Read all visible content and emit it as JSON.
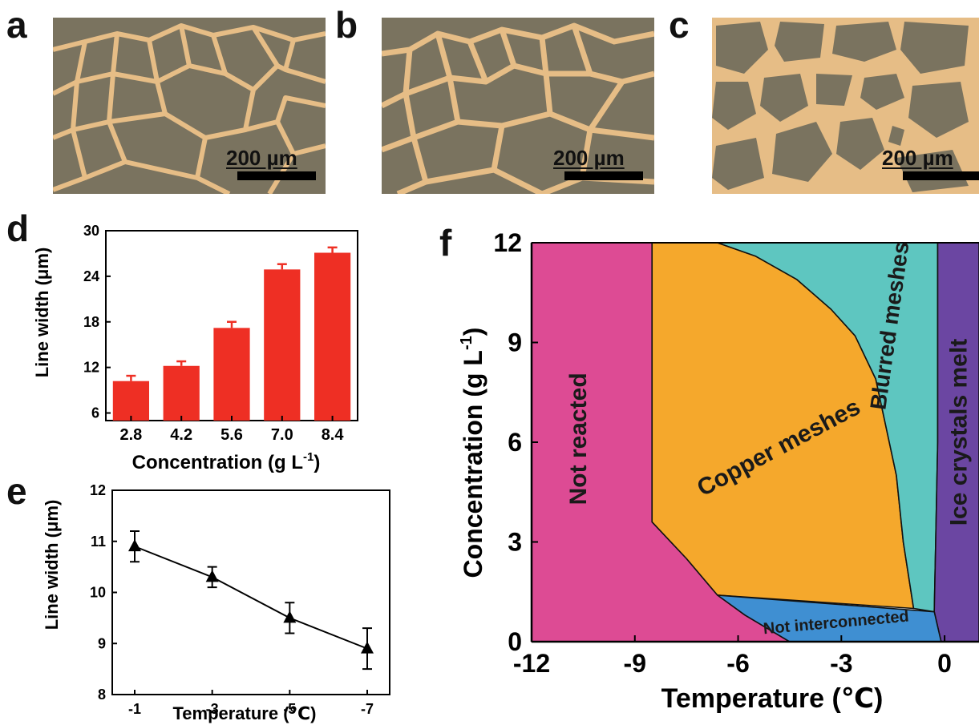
{
  "panels": {
    "a": {
      "letter": "a",
      "scale_label": "200 µm"
    },
    "b": {
      "letter": "b",
      "scale_label": "200 µm"
    },
    "c": {
      "letter": "c",
      "scale_label": "200 µm"
    },
    "d": {
      "letter": "d"
    },
    "e": {
      "letter": "e"
    },
    "f": {
      "letter": "f"
    }
  },
  "colors": {
    "micro_bg": "#7a735f",
    "micro_line": "#e6bd86",
    "bar": "#ee2f24",
    "not_reacted": "#dd4b94",
    "copper_meshes": "#f5a82c",
    "blurred_meshes": "#5ec6c0",
    "ice_crystals_melt": "#6b46a2",
    "not_interconnected": "#3f8fd2"
  },
  "chart_data": [
    {
      "id": "d",
      "type": "bar",
      "categories": [
        "2.8",
        "4.2",
        "5.6",
        "7.0",
        "8.4"
      ],
      "values": [
        10.2,
        12.2,
        17.2,
        24.9,
        27.1
      ],
      "errors": [
        0.7,
        0.6,
        0.8,
        0.7,
        0.7
      ],
      "xlabel": "Concentration (g L",
      "xlabel_sup": "-1",
      "xlabel_tail": ")",
      "ylabel": "Line width (μm)",
      "ylim": [
        5,
        30
      ],
      "yticks": [
        "6",
        "12",
        "18",
        "24",
        "30"
      ],
      "color": "#ee2f24"
    },
    {
      "id": "e",
      "type": "line",
      "categories": [
        "-1",
        "-3",
        "-5",
        "-7"
      ],
      "values": [
        10.9,
        10.3,
        9.5,
        8.9
      ],
      "errors": [
        0.3,
        0.2,
        0.3,
        0.4
      ],
      "xlabel": "Temperature (℃)",
      "ylabel": "Line width (μm)",
      "ylim": [
        8,
        12
      ],
      "yticks": [
        "8",
        "9",
        "10",
        "11",
        "12"
      ],
      "marker": "triangle"
    },
    {
      "id": "f",
      "type": "area",
      "xlabel": "Temperature (℃)",
      "ylabel": "Concentration (g L",
      "ylabel_sup": "-1",
      "ylabel_tail": ")",
      "xlim": [
        -12,
        1
      ],
      "ylim": [
        0,
        12
      ],
      "xticks": [
        "-12",
        "-9",
        "-6",
        "-3",
        "0"
      ],
      "yticks": [
        "0",
        "3",
        "6",
        "9",
        "12"
      ],
      "regions": [
        {
          "name": "Not reacted",
          "color": "#dd4b94",
          "polygon": [
            [
              -12,
              0
            ],
            [
              -12,
              12
            ],
            [
              -8.5,
              12
            ],
            [
              -8.5,
              3.6
            ],
            [
              -7.5,
              2.5
            ],
            [
              -6.6,
              1.4
            ],
            [
              -5.8,
              0.8
            ],
            [
              -4.5,
              0
            ],
            [
              -12,
              0
            ]
          ]
        },
        {
          "name": "Copper meshes",
          "color": "#f5a82c",
          "polygon": [
            [
              -8.5,
              3.6
            ],
            [
              -8.5,
              12
            ],
            [
              -6.6,
              12
            ],
            [
              -5.5,
              11.6
            ],
            [
              -4.3,
              10.9
            ],
            [
              -3.3,
              10.0
            ],
            [
              -2.6,
              9.2
            ],
            [
              -2.0,
              7.9
            ],
            [
              -1.4,
              5.0
            ],
            [
              -1.2,
              3.0
            ],
            [
              -0.9,
              1.0
            ],
            [
              -6.6,
              1.4
            ],
            [
              -7.5,
              2.5
            ],
            [
              -8.5,
              3.6
            ]
          ]
        },
        {
          "name": "Blurred meshes",
          "color": "#5ec6c0",
          "polygon": [
            [
              -6.6,
              12
            ],
            [
              -0.2,
              12
            ],
            [
              -0.2,
              6.0
            ],
            [
              -0.3,
              0.9
            ],
            [
              -0.9,
              1.0
            ],
            [
              -1.2,
              3.0
            ],
            [
              -1.4,
              5.0
            ],
            [
              -2.0,
              7.9
            ],
            [
              -2.6,
              9.2
            ],
            [
              -3.3,
              10.0
            ],
            [
              -4.3,
              10.9
            ],
            [
              -5.5,
              11.6
            ],
            [
              -6.6,
              12
            ]
          ]
        },
        {
          "name": "Ice crystals melt",
          "color": "#6b46a2",
          "polygon": [
            [
              -0.2,
              12
            ],
            [
              1,
              12
            ],
            [
              1,
              0
            ],
            [
              -0.1,
              0
            ],
            [
              -0.3,
              0.9
            ],
            [
              -0.2,
              6.0
            ],
            [
              -0.2,
              12
            ]
          ]
        },
        {
          "name": "Not interconnected",
          "color": "#3f8fd2",
          "polygon": [
            [
              -6.6,
              1.4
            ],
            [
              -0.3,
              0.9
            ],
            [
              -0.1,
              0
            ],
            [
              -4.5,
              0
            ],
            [
              -5.8,
              0.8
            ],
            [
              -6.6,
              1.4
            ]
          ]
        }
      ],
      "labels": [
        {
          "text": "Not reacted",
          "x": -10.6,
          "y": 6.1,
          "rotate": -90
        },
        {
          "text": "Copper meshes",
          "x": -4.8,
          "y": 5.8,
          "rotate": -28
        },
        {
          "text": "Blurred meshes",
          "x": -1.55,
          "y": 9.5,
          "rotate": -82
        },
        {
          "text": "Ice crystals melt",
          "x": 0.45,
          "y": 6.3,
          "rotate": -90
        },
        {
          "text": "Not interconnected",
          "x": -3.15,
          "y": 0.55,
          "rotate": -5
        }
      ]
    }
  ]
}
